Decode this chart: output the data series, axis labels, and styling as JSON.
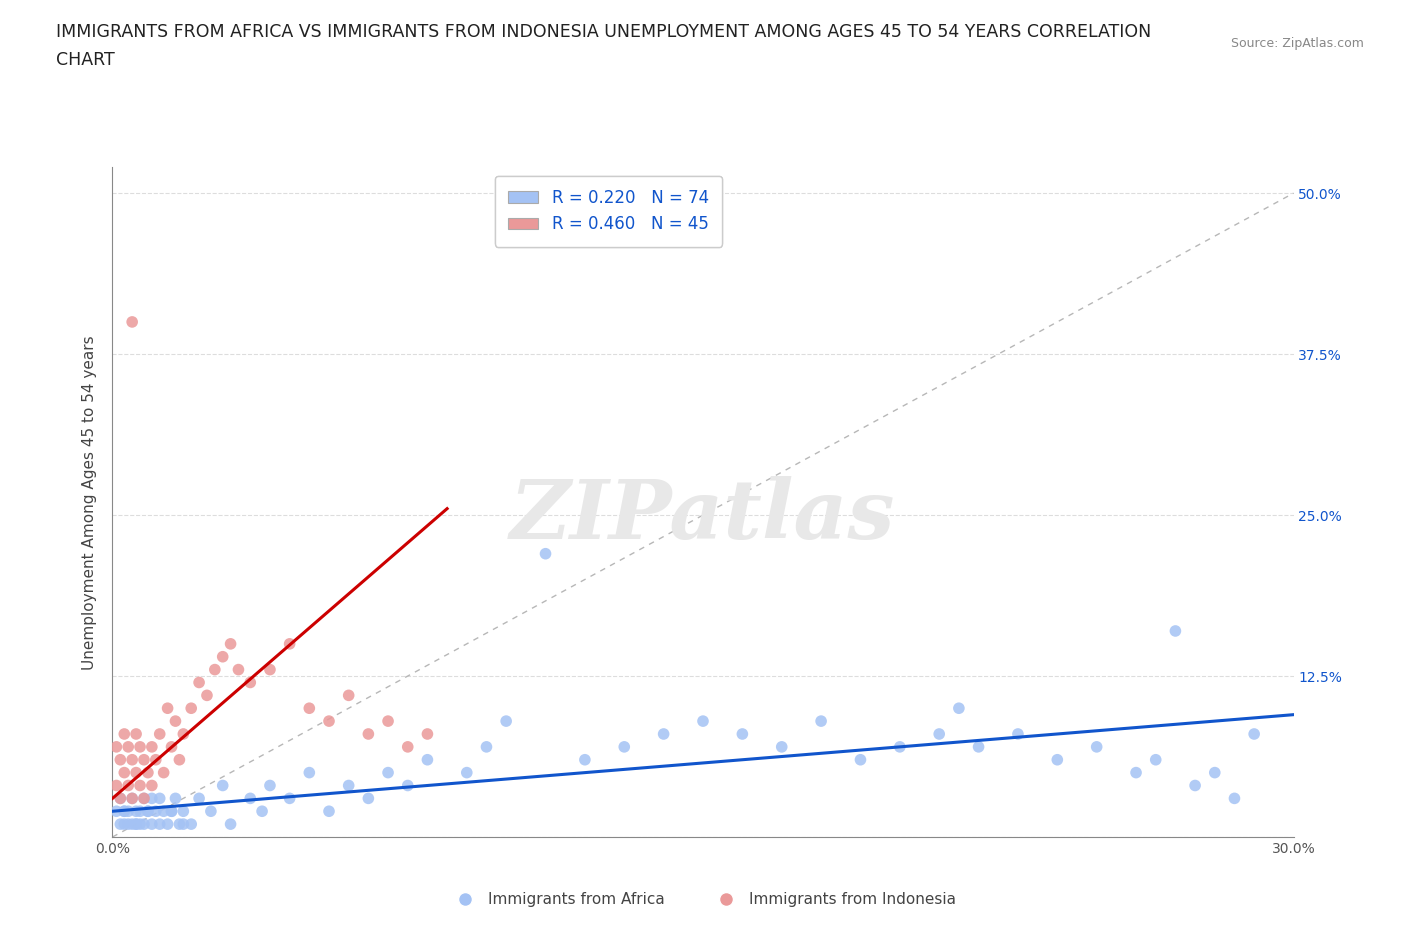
{
  "title": "IMMIGRANTS FROM AFRICA VS IMMIGRANTS FROM INDONESIA UNEMPLOYMENT AMONG AGES 45 TO 54 YEARS CORRELATION\nCHART",
  "source_text": "Source: ZipAtlas.com",
  "ylabel": "Unemployment Among Ages 45 to 54 years",
  "xlim": [
    0.0,
    0.3
  ],
  "ylim": [
    0.0,
    0.52
  ],
  "xticks": [
    0.0,
    0.05,
    0.1,
    0.15,
    0.2,
    0.25,
    0.3
  ],
  "xtick_labels": [
    "0.0%",
    "",
    "",
    "",
    "",
    "",
    "30.0%"
  ],
  "yticks": [
    0.0,
    0.125,
    0.25,
    0.375,
    0.5
  ],
  "ytick_labels": [
    "",
    "12.5%",
    "25.0%",
    "37.5%",
    "50.0%"
  ],
  "blue_color": "#a4c2f4",
  "pink_color": "#ea9999",
  "blue_line_color": "#1155cc",
  "pink_line_color": "#cc0000",
  "ref_line_color": "#b7b7b7",
  "watermark_color": "#e8e8e8",
  "watermark_text": "ZIPatlas",
  "legend_R_blue": "R = 0.220",
  "legend_N_blue": "N = 74",
  "legend_R_pink": "R = 0.460",
  "legend_N_pink": "N = 45",
  "legend_label_blue": "Immigrants from Africa",
  "legend_label_pink": "Immigrants from Indonesia",
  "africa_x": [
    0.001,
    0.002,
    0.002,
    0.003,
    0.003,
    0.004,
    0.004,
    0.005,
    0.005,
    0.006,
    0.006,
    0.007,
    0.007,
    0.008,
    0.008,
    0.009,
    0.01,
    0.01,
    0.011,
    0.012,
    0.013,
    0.014,
    0.015,
    0.016,
    0.017,
    0.018,
    0.02,
    0.022,
    0.025,
    0.028,
    0.03,
    0.035,
    0.038,
    0.04,
    0.045,
    0.05,
    0.055,
    0.06,
    0.065,
    0.07,
    0.075,
    0.08,
    0.09,
    0.095,
    0.1,
    0.11,
    0.12,
    0.13,
    0.14,
    0.15,
    0.16,
    0.17,
    0.18,
    0.19,
    0.2,
    0.21,
    0.215,
    0.22,
    0.23,
    0.24,
    0.25,
    0.26,
    0.265,
    0.27,
    0.275,
    0.28,
    0.285,
    0.29,
    0.003,
    0.006,
    0.009,
    0.012,
    0.015,
    0.018
  ],
  "africa_y": [
    0.02,
    0.01,
    0.03,
    0.01,
    0.02,
    0.01,
    0.02,
    0.01,
    0.03,
    0.01,
    0.02,
    0.01,
    0.02,
    0.01,
    0.03,
    0.02,
    0.01,
    0.03,
    0.02,
    0.01,
    0.02,
    0.01,
    0.02,
    0.03,
    0.01,
    0.02,
    0.01,
    0.03,
    0.02,
    0.04,
    0.01,
    0.03,
    0.02,
    0.04,
    0.03,
    0.05,
    0.02,
    0.04,
    0.03,
    0.05,
    0.04,
    0.06,
    0.05,
    0.07,
    0.09,
    0.22,
    0.06,
    0.07,
    0.08,
    0.09,
    0.08,
    0.07,
    0.09,
    0.06,
    0.07,
    0.08,
    0.1,
    0.07,
    0.08,
    0.06,
    0.07,
    0.05,
    0.06,
    0.16,
    0.04,
    0.05,
    0.03,
    0.08,
    0.02,
    0.01,
    0.02,
    0.03,
    0.02,
    0.01
  ],
  "indonesia_x": [
    0.001,
    0.001,
    0.002,
    0.002,
    0.003,
    0.003,
    0.004,
    0.004,
    0.005,
    0.005,
    0.006,
    0.006,
    0.007,
    0.007,
    0.008,
    0.008,
    0.009,
    0.01,
    0.01,
    0.011,
    0.012,
    0.013,
    0.014,
    0.015,
    0.016,
    0.017,
    0.018,
    0.02,
    0.022,
    0.024,
    0.026,
    0.028,
    0.03,
    0.032,
    0.035,
    0.04,
    0.045,
    0.05,
    0.055,
    0.06,
    0.065,
    0.07,
    0.075,
    0.08,
    0.005
  ],
  "indonesia_y": [
    0.04,
    0.07,
    0.03,
    0.06,
    0.05,
    0.08,
    0.04,
    0.07,
    0.03,
    0.06,
    0.05,
    0.08,
    0.04,
    0.07,
    0.03,
    0.06,
    0.05,
    0.04,
    0.07,
    0.06,
    0.08,
    0.05,
    0.1,
    0.07,
    0.09,
    0.06,
    0.08,
    0.1,
    0.12,
    0.11,
    0.13,
    0.14,
    0.15,
    0.13,
    0.12,
    0.13,
    0.15,
    0.1,
    0.09,
    0.11,
    0.08,
    0.09,
    0.07,
    0.08,
    0.4
  ],
  "blue_trend_x": [
    0.0,
    0.3
  ],
  "blue_trend_y": [
    0.02,
    0.095
  ],
  "pink_trend_x": [
    0.0,
    0.085
  ],
  "pink_trend_y": [
    0.03,
    0.255
  ],
  "background_color": "#ffffff",
  "grid_color": "#dddddd",
  "title_fontsize": 12.5,
  "axis_label_fontsize": 11,
  "tick_fontsize": 10,
  "legend_fontsize": 12
}
